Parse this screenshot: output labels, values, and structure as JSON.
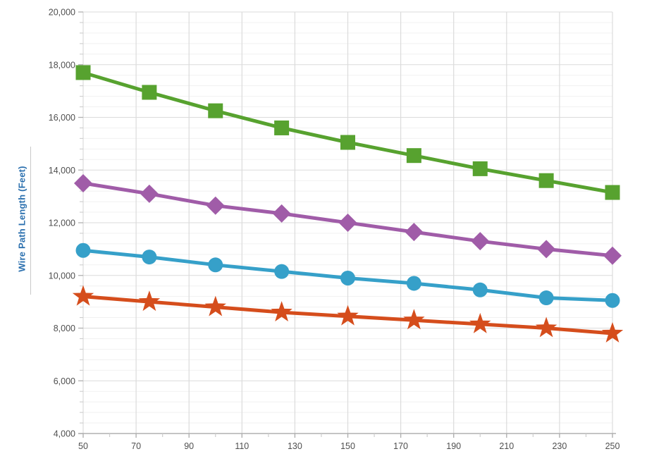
{
  "page": {
    "background": "#ffffff"
  },
  "y_axis_title": "Wire Path Length (Feet)",
  "colors": {
    "axis_title_blue": "#2A6FAE",
    "tick_label": "#4F4F4F",
    "grid_major": "#DBDBDB",
    "grid_minor": "#F1F1F1",
    "axis_line": "#B0B0B0",
    "minor_tick": "#CDCDCD",
    "series_green": "#57A22F",
    "series_purple": "#A05CA8",
    "series_blue": "#36A0C9",
    "series_orange": "#D54D1C"
  },
  "chart_data": {
    "type": "line",
    "title": "",
    "xlabel": "",
    "ylabel": "Wire Path Length (Feet)",
    "grid": "on",
    "legend": "none",
    "x": [
      50,
      75,
      100,
      125,
      150,
      175,
      200,
      225,
      250
    ],
    "series": [
      {
        "name": "green-squares",
        "marker": "square",
        "color": "#57A22F",
        "values": [
          17700,
          16950,
          16250,
          15600,
          15050,
          14550,
          14050,
          13600,
          13150
        ]
      },
      {
        "name": "purple-diamonds",
        "marker": "diamond",
        "color": "#A05CA8",
        "values": [
          13500,
          13100,
          12650,
          12350,
          12000,
          11650,
          11300,
          11000,
          10750
        ]
      },
      {
        "name": "blue-circles",
        "marker": "circle",
        "color": "#36A0C9",
        "values": [
          10950,
          10700,
          10400,
          10150,
          9900,
          9700,
          9450,
          9150,
          9050
        ]
      },
      {
        "name": "orange-stars",
        "marker": "star",
        "color": "#D54D1C",
        "values": [
          9200,
          9000,
          8800,
          8600,
          8450,
          8300,
          8150,
          8000,
          7800
        ]
      }
    ],
    "x_axis": {
      "min": 50,
      "max": 250,
      "major_step": 20,
      "minor_step": 10,
      "tick_labels": [
        "50",
        "70",
        "90",
        "110",
        "130",
        "150",
        "170",
        "190",
        "210",
        "230",
        "250"
      ]
    },
    "y_axis": {
      "min": 4000,
      "max": 20000,
      "major_step": 2000,
      "minor_step": 400,
      "tick_labels": [
        "20,000",
        "18,000",
        "16,000",
        "14,000",
        "12,000",
        "10,000",
        "8,000",
        "6,000",
        "4,000"
      ]
    }
  }
}
